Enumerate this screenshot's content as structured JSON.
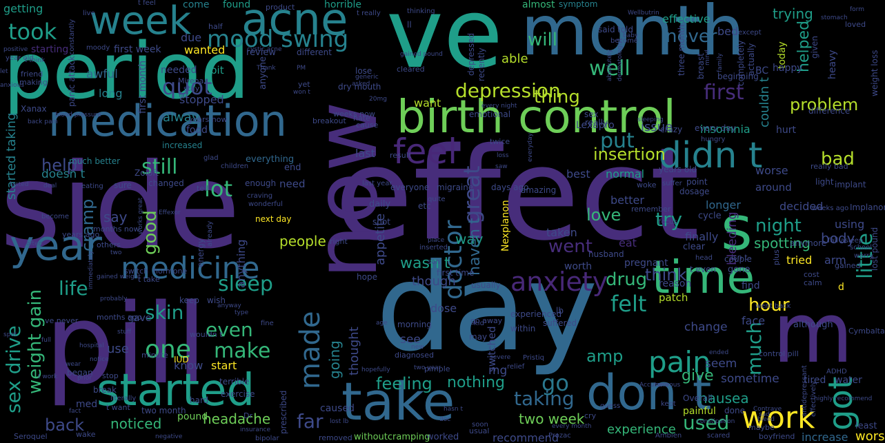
{
  "colors": {
    "background": "#000000",
    "palette": [
      "#3e4a89",
      "#472d7b",
      "#31688e",
      "#26828e",
      "#1f9e89",
      "#35b779",
      "#6ece58",
      "#b5de2b",
      "#fde725"
    ]
  },
  "words": {
    "side": "side",
    "effect": "effect",
    "period": "period",
    "ve": "ve",
    "month": "month",
    "day": "day",
    "pill": "pill",
    "now": "now",
    "birth_control": "birth control",
    "time": "time",
    "s": "s",
    "m": "m",
    "take": "take",
    "dont": "don t",
    "week": "week",
    "acne": "acne",
    "medication": "medication",
    "year": "year",
    "feel": "feel",
    "didnt": "didn t",
    "started": "started",
    "work": "work",
    "got": "got",
    "medicine": "medicine",
    "anxiety": "anxiety",
    "took": "took",
    "mood_swing": "mood swing",
    "quot": "quot",
    "depression": "depression",
    "well": "well",
    "first": "first",
    "will": "will",
    "never": "never",
    "pain": "pain",
    "one": "one",
    "made": "made",
    "doctor": "doctor",
    "great": "great",
    "help": "help",
    "still": "still",
    "lot": "lot",
    "sleep": "sleep",
    "life": "life",
    "skin": "skin",
    "make": "make",
    "even": "even",
    "weight_gain": "weight gain",
    "sex_drive": "sex drive",
    "back": "back",
    "far": "far",
    "taking": "taking",
    "used": "used",
    "much": "much",
    "little": "little",
    "go": "go",
    "felt": "felt",
    "drug": "drug",
    "try": "try",
    "night": "night",
    "went": "went",
    "love": "love",
    "think": "think",
    "put": "put",
    "good": "good",
    "cramp": "cramp",
    "thing": "thing",
    "problem": "problem",
    "helped": "helped",
    "trying": "trying",
    "bad": "bad",
    "hour": "hour",
    "insertion": "insertion",
    "spotting": "spotting",
    "amp": "amp",
    "feeling": "feeling",
    "nothing": "nothing",
    "give": "give",
    "nausea": "nausea",
    "two_week": "two week",
    "headache": "headache",
    "noticed": "noticed",
    "pound": "pound",
    "experience": "experience",
    "recommend": "recommend",
    "increase": "increase",
    "worst": "worst",
    "people": "people",
    "say": "say",
    "way": "way",
    "wasnt": "wasn t",
    "havent": "haven t",
    "insomnia": "insomnia",
    "issue": "issue",
    "want": "want",
    "able": "able",
    "couldnt": "couldn t",
    "effective": "effective",
    "found": "found",
    "horrible": "horrible",
    "getting": "getting",
    "come": "come",
    "product": "product",
    "almost": "almost",
    "symptom": "symptom",
    "said": "said",
    "told": "told",
    "bed": "bed",
    "first_week": "first week",
    "starting": "starting",
    "moody": "moody",
    "due": "due",
    "wanted": "wanted",
    "review": "review",
    "different": "different",
    "awful": "awful",
    "bit": "bit",
    "needed": "needed",
    "long": "long",
    "alway": "alway",
    "stopped": "stopped",
    "food": "food",
    "increased": "increased",
    "much_better": "much better",
    "started_taking": "started taking",
    "doesnt": "doesn t",
    "sure": "sure",
    "changed": "changed",
    "need": "need",
    "end": "end",
    "everything": "everything",
    "last": "last",
    "best": "best",
    "normal": "normal",
    "better": "better",
    "longer": "longer",
    "decided": "decided",
    "around": "around",
    "point": "point",
    "dosage": "dosage",
    "worse": "worse",
    "light": "light",
    "implant": "implant",
    "using": "using",
    "body": "body",
    "bleeding": "bleeding",
    "finally": "finally",
    "eat": "eat",
    "taken": "taken",
    "cycle": "cycle",
    "pregnant": "pregnant",
    "worth": "worth",
    "gone": "gone",
    "tried": "tried",
    "arm": "arm",
    "couple": "couple",
    "reason": "reason",
    "patch": "patch",
    "find": "find",
    "face": "face",
    "change": "change",
    "seem": "seem",
    "sometime": "sometime",
    "tired": "tired",
    "water": "water",
    "painful": "painful",
    "Overall": "Overall",
    "done": "done",
    "caused": "caused",
    "worked": "worked",
    "withoutcramping": "withoutcramping",
    "removed": "removed",
    "mg": "mg",
    "see": "see",
    "thought": "thought",
    "going": "going",
    "dose": "dose",
    "though": "though",
    "appetite": "appetite",
    "switched": "switched",
    "may": "may",
    "experienced": "experienced",
    "suffered": "suffered",
    "lb": "lb",
    "within": "within",
    "use": "use",
    "know": "know",
    "start": "start",
    "gave": "gave",
    "keep": "keep",
    "wish": "wish",
    "t_take": "t take",
    "morning": "morning",
    "month_word": "month",
    "year_old": "year old",
    "years_ago": "years ago",
    "months_now": "months now",
    "energy": "energy",
    "anything": "anything",
    "depressed": "depressed",
    "recently": "recently",
    "today": "today",
    "happy": "happy",
    "half": "half",
    "Zoloft": "Zoloft",
    "Lexapro": "Lexapro",
    "Nexplanon": "Nexplanon",
    "IUD": "IUD",
    "Implanon": "Implanon",
    "Mirena": "Mirena",
    "Xanax": "Xanax",
    "BC": "BC",
    "dry_mouth": "dry mouth",
    "panic_attack": "panic attack",
    "first_month": "first month",
    "years_now": "years now",
    "every_day": "every day",
    "really": "really",
    "crazy": "crazy",
    "hurt": "hurt",
    "difference": "difference",
    "really_bad": "really bad",
    "migraine": "migraine",
    "everyone": "everyone",
    "amazing": "amazing",
    "days_ago": "days ago",
    "next_day": "next day",
    "daily": "daily",
    "etc": "etc",
    "hope": "hope",
    "first_time": "first time",
    "usually": "usually",
    "husband": "husband",
    "t_even": "t even",
    "isnt": "isn t",
    "prescribed": "prescribed",
    "mood": "mood",
    "left": "left",
    "hard": "hard",
    "exercise": "exercise",
    "two_month": "two month",
    "t_want": "t want",
    "med": "med",
    "began": "began",
    "break": "break",
    "terrible": "terrible",
    "stop": "stop",
    "minute": "minute",
    "others": "others",
    "switch": "switch",
    "hormone": "hormone",
    "ve_never": "ve never",
    "months_ago": "months ago",
    "control_pill": "control pill",
    "go_away": "go away",
    "diagnosed": "diagnosed",
    "usual": "usual",
    "Ambien": "Ambien",
    "Prozac": "Prozac",
    "Seroquel": "Seroquel",
    "bipolar": "bipolar",
    "boyfriend": "boyfriend",
    "maybe": "maybe",
    "scared": "scared",
    "wake": "wake",
    "pimple": "pimple",
    "relief": "relief",
    "guess": "guess",
    "cry": "cry",
    "kept": "kept",
    "least": "least",
    "ADHD": "ADHD",
    "Cymbalta": "Cymbalta",
    "although": "although",
    "gained": "gained",
    "cost": "cost",
    "calm": "calm",
    "d": "d",
    "thing_small": "Overall",
    "stayed": "stay",
    "lose": "lose",
    "cleared": "cleared",
    "breakout": "breakout",
    "cause": "cause",
    "anyone": "anyone",
    "yet": "yet",
    "ll": "ll",
    "become": "become",
    "except": "except",
    "baby": "baby",
    "loved": "loved",
    "given": "given",
    "heavy": "heavy",
    "breast": "breast",
    "beginning": "beginning",
    "actually": "actually",
    "completely": "completely",
    "emotional": "emotional",
    "sex": "sex",
    "three_month": "three month",
    "years_old": "years old",
    "result": "result",
    "twice": "twice",
    "weeks_now": "weeks now",
    "hate": "hate",
    "glad": "glad",
    "children": "children",
    "enough": "enough",
    "tell": "tell",
    "craving": "craving",
    "wonderful": "wonderful",
    "right": "right",
    "quite": "quite",
    "shot": "shot",
    "last_year": "last year",
    "inserted": "inserted",
    "son": "son",
    "hungry": "hungry",
    "suffer": "suffer",
    "woke": "woke",
    "remember": "remember",
    "focus": "focus",
    "clear": "clear",
    "anymore": "anymore",
    "plus": "plus",
    "head": "head",
    "went_back": "went back",
    "weeks_ago": "weeks ago",
    "fall_asleep": "fall asleep",
    "school": "school",
    "worry": "worry",
    "lost_pound": "lost pound",
    "weight_loss": "weight loss",
    "constantly": "constantly",
    "positive": "positive",
    "live": "live",
    "t_feel": "t feel",
    "t_really": "t really",
    "thinking": "thinking",
    "form": "form",
    "stomach": "stomach",
    "Wellbutrin": "Wellbutrin",
    "dermatologist": "dermatologist",
    "absolutely": "absolutely",
    "making": "making",
    "friend": "friend",
    "anxious": "anxious",
    "let": "let",
    "t_think": "t think",
    "blood_pressure": "blood pressure",
    "back_pain": "back pain",
    "lasted": "lasted",
    "deal": "deal",
    "eating": "eating",
    "become_small": "become",
    "often": "often",
    "two": "two",
    "immediately": "immediately",
    "gained_weight": "gained weight",
    "probably": "probably",
    "full": "full",
    "spot": "spot",
    "stuff": "stuff",
    "hospital": "hospital",
    "wear": "wear",
    "notice": "notice",
    "t_work": "t work",
    "fact": "fact",
    "prior": "prior",
    "hopefully": "hopefully",
    "literally": "literally",
    "wouldnt": "wouldn t",
    "fine": "fine",
    "chance": "age",
    "type": "type",
    "anyway": "anyway",
    "already": "already",
    "Effexor": "Effexor",
    "works_great": "works great",
    "twenty": "20mg",
    "gained_pound": "gained pound",
    "asked": "asked",
    "wont": "won t",
    "PM": "PM",
    "generic": "generic",
    "sleeping": "sleeping",
    "family": "family",
    "mind": "mind",
    "night_small": "every night",
    "everyday": "everyday",
    "saw": "saw",
    "loss": "loss",
    "new": "new",
    "two_year": "two year",
    "severe": "severe",
    "Pristiq": "Pristiq",
    "ended": "ended",
    "antidepressant": "antidepressant",
    "effectively": "effectively",
    "highly_recommend": "highly recommend",
    "Contrave": "Contrave",
    "bleed": "bleed",
    "sad": "sad",
    "every_month": "every month",
    "soon": "soon",
    "lost_lb": "lost lb",
    "negative": "negative",
    "insurance": "insurance",
    "kid": "kid",
    "place": "place",
    "Accutane": "Accutane",
    "constipation": "constipation",
    "nervous": "nervous",
    "Dr": "Dr",
    "hasnt": "hasn t",
    "doc": "doc",
    "Thank": "Thank",
    "cystic_acne": "cystic acne",
    "Yaz": "Yaz"
  }
}
